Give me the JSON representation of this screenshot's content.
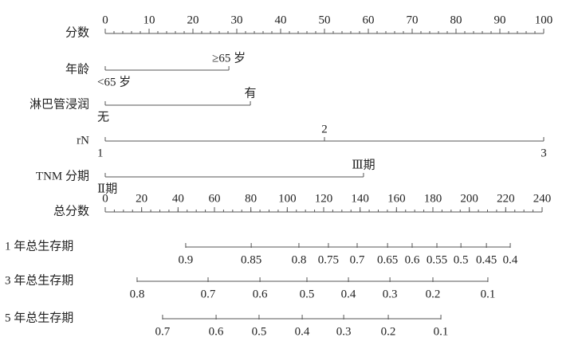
{
  "chart_data": {
    "type": "nomogram",
    "points_axis": {
      "label": "分数",
      "xlim": [
        0,
        100
      ],
      "xticks": [
        0,
        10,
        20,
        30,
        40,
        50,
        60,
        70,
        80,
        90,
        100
      ],
      "minor_step": 2
    },
    "predictors": [
      {
        "label": "年龄",
        "values": [
          0,
          28.2
        ],
        "level_labels": [
          "<65 岁",
          "≥65 岁"
        ]
      },
      {
        "label": "淋巴管浸润",
        "values": [
          0,
          33.1
        ],
        "level_labels": [
          "无",
          "有"
        ]
      },
      {
        "label": "rN",
        "values": [
          0,
          50,
          100
        ],
        "level_labels": [
          "1",
          "2",
          "3"
        ]
      },
      {
        "label": "TNM 分期",
        "values": [
          0,
          58.9
        ],
        "level_labels": [
          "Ⅱ期",
          "Ⅲ期"
        ]
      }
    ],
    "total_axis": {
      "label": "总分数",
      "xlim": [
        0,
        240
      ],
      "xticks": [
        0,
        20,
        40,
        60,
        80,
        100,
        120,
        140,
        160,
        180,
        200,
        220,
        240
      ],
      "minor_step": 5
    },
    "outcomes": [
      {
        "label": "1 年总生存期",
        "ticks": [
          {
            "value": 44.2,
            "label": "0.9"
          },
          {
            "value": 80.2,
            "label": "0.85"
          },
          {
            "value": 106.4,
            "label": "0.8"
          },
          {
            "value": 122.6,
            "label": "0.75"
          },
          {
            "value": 138.4,
            "label": "0.7"
          },
          {
            "value": 155.1,
            "label": "0.65"
          },
          {
            "value": 168.6,
            "label": "0.6"
          },
          {
            "value": 182.2,
            "label": "0.55"
          },
          {
            "value": 195.4,
            "label": "0.5"
          },
          {
            "value": 209.4,
            "label": "0.45"
          },
          {
            "value": 222.5,
            "label": "0.4"
          }
        ]
      },
      {
        "label": "3 年总生存期",
        "ticks": [
          {
            "value": 17.5,
            "label": "0.8"
          },
          {
            "value": 56.5,
            "label": "0.7"
          },
          {
            "value": 85.0,
            "label": "0.6"
          },
          {
            "value": 110.8,
            "label": "0.5"
          },
          {
            "value": 133.6,
            "label": "0.4"
          },
          {
            "value": 156.4,
            "label": "0.3"
          },
          {
            "value": 180.0,
            "label": "0.2"
          },
          {
            "value": 210.2,
            "label": "0.1"
          }
        ]
      },
      {
        "label": "5 年总生存期",
        "ticks": [
          {
            "value": 31.5,
            "label": "0.7"
          },
          {
            "value": 60.9,
            "label": "0.6"
          },
          {
            "value": 84.5,
            "label": "0.5"
          },
          {
            "value": 108.2,
            "label": "0.4"
          },
          {
            "value": 131.0,
            "label": "0.3"
          },
          {
            "value": 155.5,
            "label": "0.2"
          },
          {
            "value": 184.4,
            "label": "0.1"
          }
        ]
      }
    ]
  }
}
